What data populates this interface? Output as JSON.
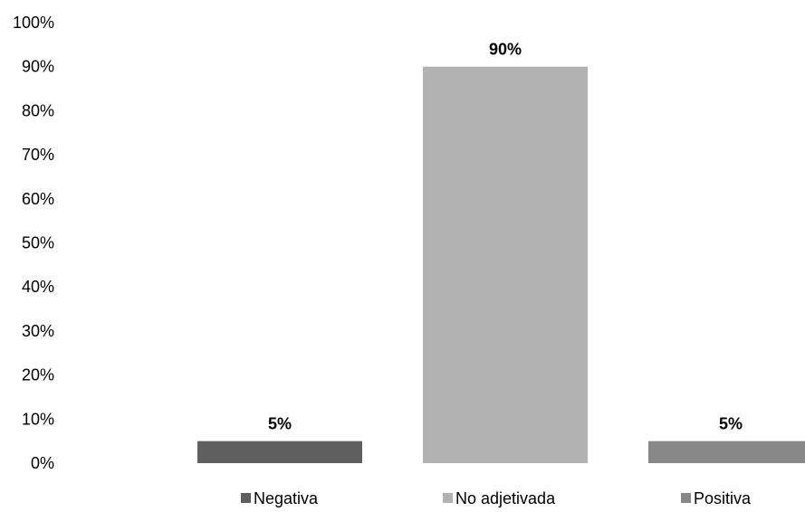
{
  "chart_data": {
    "type": "bar",
    "categories": [
      "Negativa",
      "No adjetivada",
      "Positiva"
    ],
    "values": [
      5,
      90,
      5
    ],
    "data_labels": [
      "5%",
      "90%",
      "5%"
    ],
    "colors": [
      "#5f5f5f",
      "#b2b2b2",
      "#878787"
    ],
    "ylim": [
      0,
      100
    ],
    "yticks": [
      0,
      10,
      20,
      30,
      40,
      50,
      60,
      70,
      80,
      90,
      100
    ],
    "ytick_labels": [
      "0%",
      "10%",
      "20%",
      "30%",
      "40%",
      "50%",
      "60%",
      "70%",
      "80%",
      "90%",
      "100%"
    ],
    "grid": false,
    "legend": {
      "position": "bottom",
      "entries": [
        "Negativa",
        "No adjetivada",
        "Positiva"
      ]
    },
    "title": "",
    "xlabel": "",
    "ylabel": ""
  }
}
